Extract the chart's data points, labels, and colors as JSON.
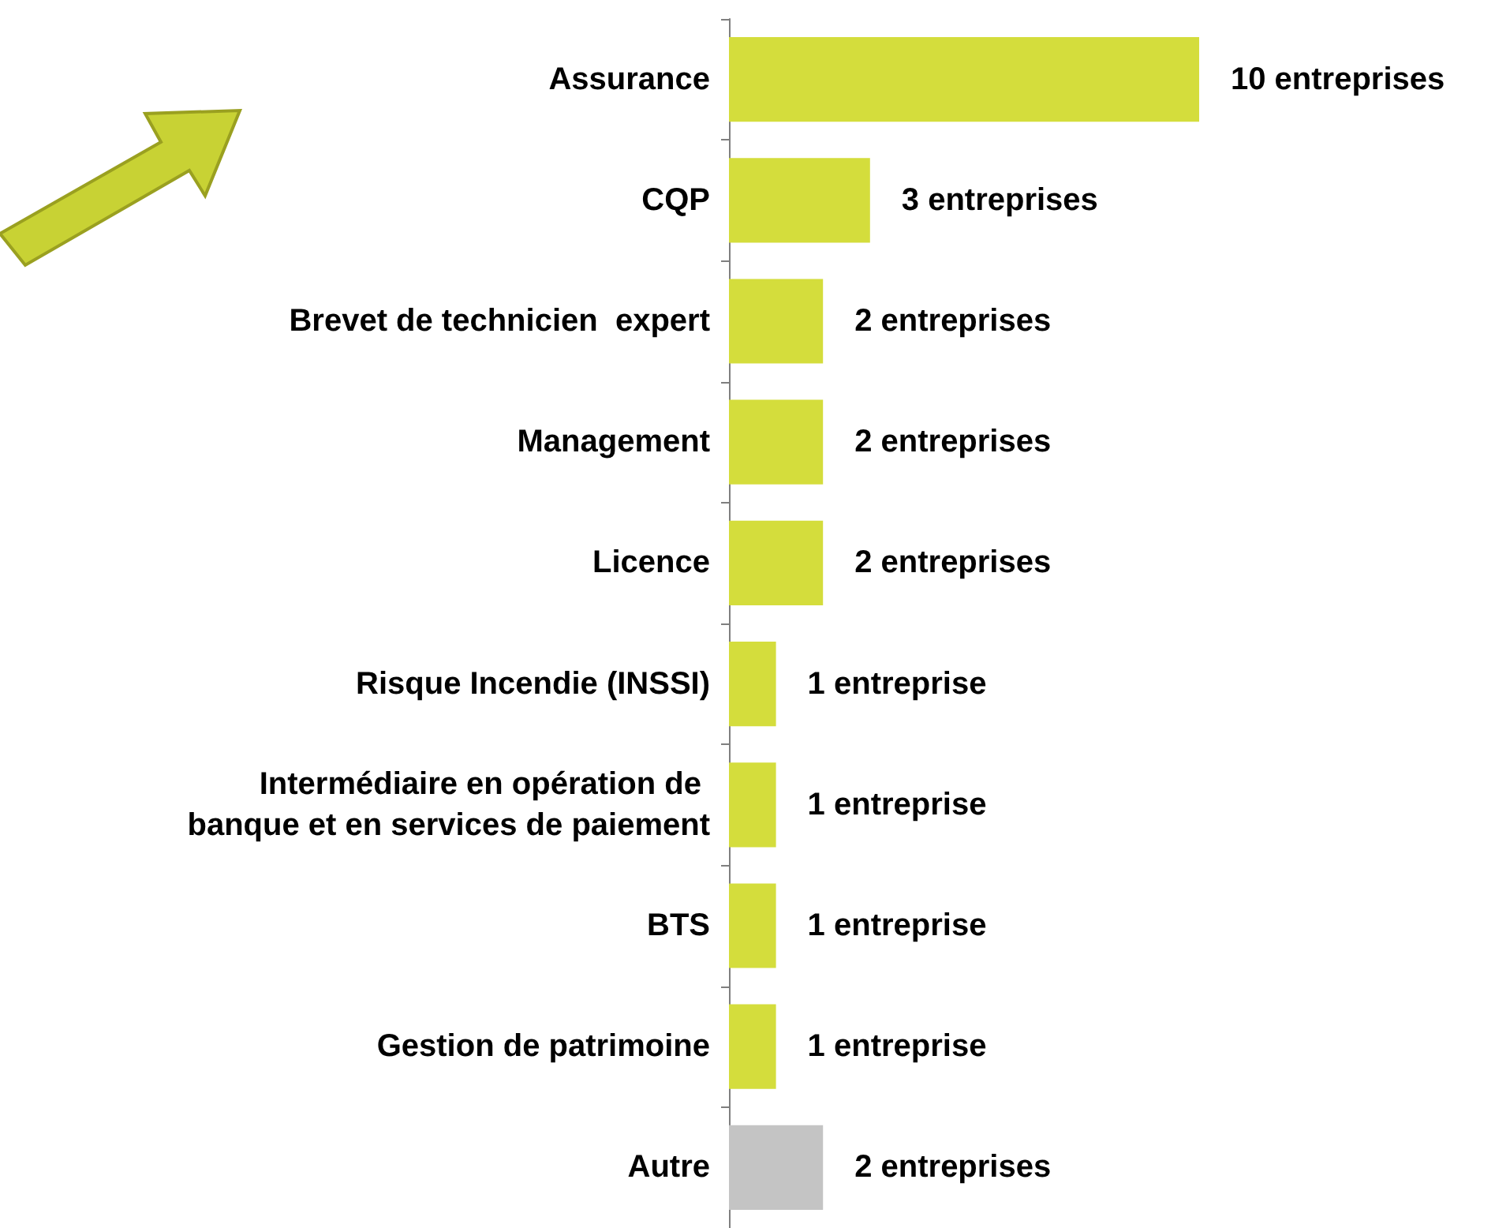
{
  "chart_data": {
    "type": "bar",
    "orientation": "horizontal",
    "categories": [
      "Assurance",
      "CQP",
      "Brevet de technicien  expert",
      "Management",
      "Licence",
      "Risque Incendie (INSSI)",
      "Intermédiaire en opération de banque et en services de paiement",
      "BTS",
      "Gestion de patrimoine",
      "Autre"
    ],
    "values": [
      10,
      3,
      2,
      2,
      2,
      1,
      1,
      1,
      1,
      2
    ],
    "value_labels": [
      "10 entreprises",
      "3 entreprises",
      "2 entreprises",
      "2 entreprises",
      "2 entreprises",
      "1 entreprise",
      "1 entreprise",
      "1 entreprise",
      "1 entreprise",
      "2 entreprises"
    ],
    "colors": [
      "#d4dd3c",
      "#d4dd3c",
      "#d4dd3c",
      "#d4dd3c",
      "#d4dd3c",
      "#d4dd3c",
      "#d4dd3c",
      "#d4dd3c",
      "#d4dd3c",
      "#c4c4c4"
    ]
  }
}
